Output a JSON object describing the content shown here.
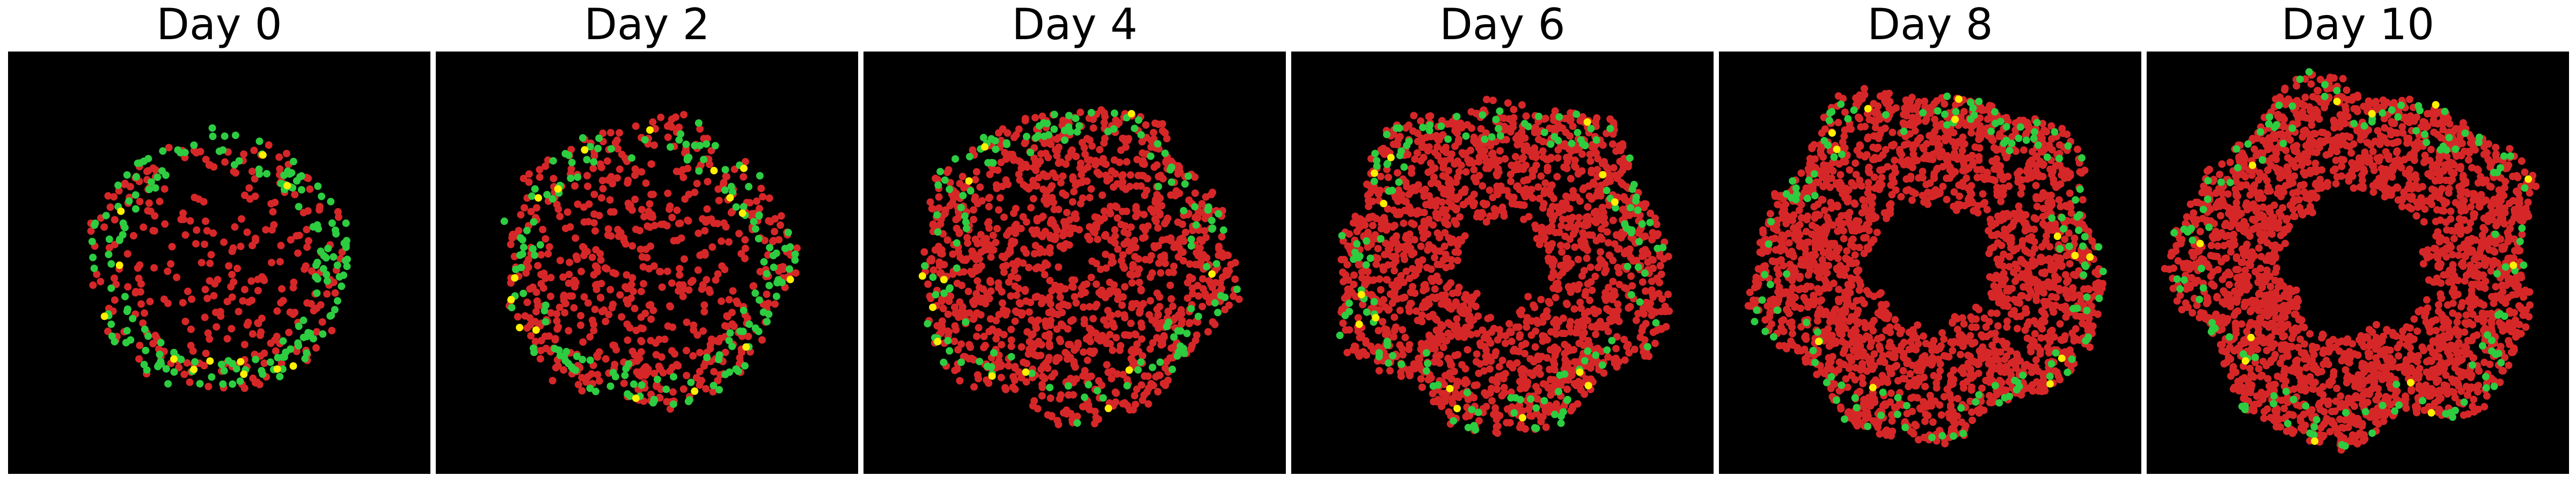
{
  "chart_data": {
    "type": "scatter",
    "background": "#000000",
    "axes_visible": false,
    "grid": false,
    "legend": "none",
    "xlim": [
      -1,
      1
    ],
    "ylim": [
      -1,
      1
    ],
    "colors": {
      "red": "#d62728",
      "green": "#2ecc40",
      "yellow": "#ffef00"
    },
    "panels": [
      {
        "title": "Day 0",
        "counts": {
          "red": 300,
          "green": 170,
          "yellow": 12
        },
        "inner_radius": 0.0,
        "outer_radius": 0.62,
        "roughness": 0.02
      },
      {
        "title": "Day 2",
        "counts": {
          "red": 620,
          "green": 150,
          "yellow": 16
        },
        "inner_radius": 0.0,
        "outer_radius": 0.68,
        "roughness": 0.04
      },
      {
        "title": "Day 4",
        "counts": {
          "red": 1250,
          "green": 130,
          "yellow": 12
        },
        "inner_radius": 0.08,
        "outer_radius": 0.74,
        "roughness": 0.05
      },
      {
        "title": "Day 6",
        "counts": {
          "red": 1700,
          "green": 140,
          "yellow": 14
        },
        "inner_radius": 0.22,
        "outer_radius": 0.78,
        "roughness": 0.06
      },
      {
        "title": "Day 8",
        "counts": {
          "red": 2100,
          "green": 130,
          "yellow": 12
        },
        "inner_radius": 0.3,
        "outer_radius": 0.82,
        "roughness": 0.06
      },
      {
        "title": "Day 10",
        "counts": {
          "red": 2400,
          "green": 120,
          "yellow": 12
        },
        "inner_radius": 0.35,
        "outer_radius": 0.84,
        "roughness": 0.07
      }
    ]
  }
}
